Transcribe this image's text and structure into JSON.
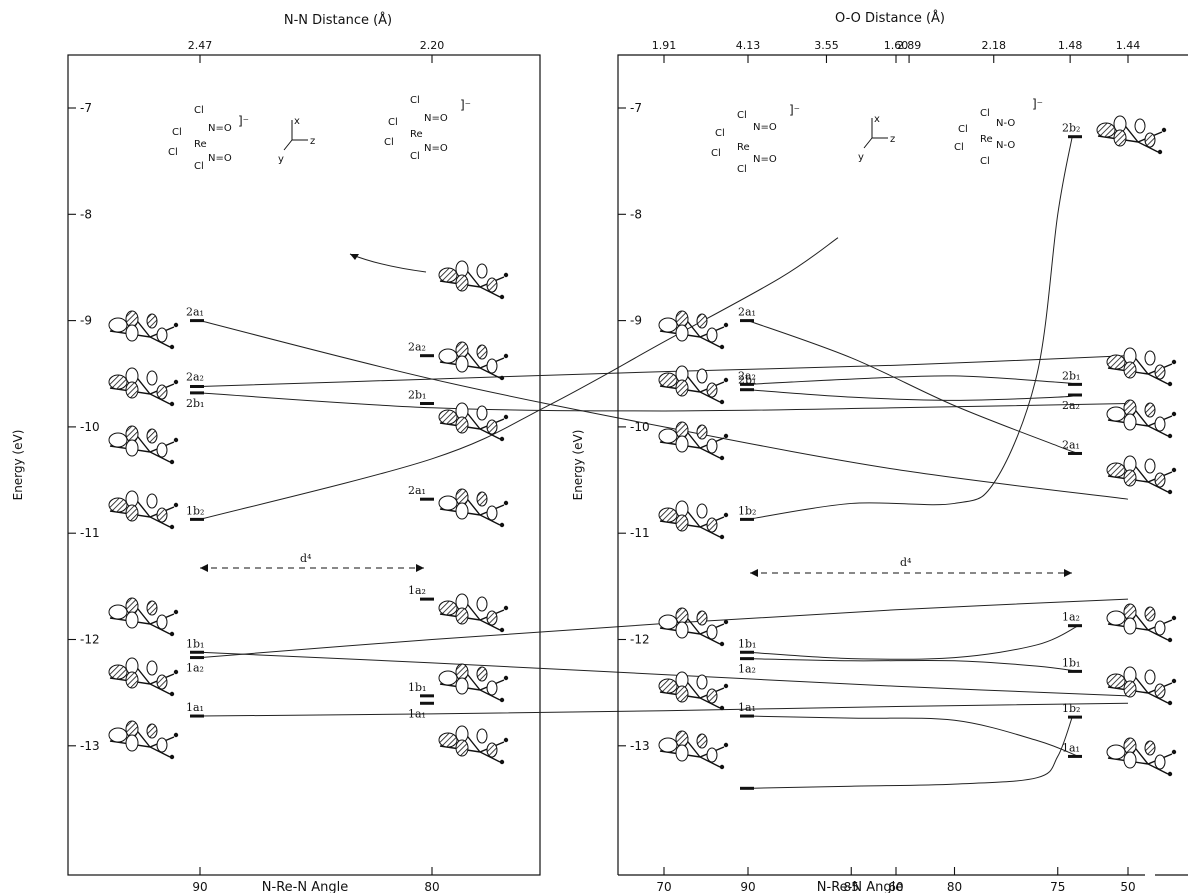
{
  "chart_data": [
    {
      "type": "line",
      "panel": "left",
      "title": "N-N Distance (Å)",
      "xlabel": "N-Re-N Angle",
      "ylabel": "Energy (eV)",
      "ylim": [
        -14.5,
        -6.5
      ],
      "yticks": [
        -7,
        -8,
        -9,
        -10,
        -11,
        -12,
        -13
      ],
      "ytick_labels": [
        "-7",
        "-8",
        "-9",
        "-10",
        "-11",
        "-12",
        "-13"
      ],
      "xlim": [
        100,
        40
      ],
      "xticks": [
        90,
        80,
        70,
        60,
        50
      ],
      "xtick_labels": [
        "90",
        "80",
        "70",
        "60",
        "50"
      ],
      "top_ticks": [
        90,
        80,
        70,
        60,
        50
      ],
      "top_tick_labels": [
        "2.47",
        "2.20",
        "1.91",
        "1.60",
        "1.44"
      ],
      "d4_label": "d⁴",
      "levels_left": [
        {
          "label": "2a₁",
          "energy": -9.0
        },
        {
          "label": "2a₂",
          "energy": -9.62
        },
        {
          "label": "2b₁",
          "energy": -9.68
        },
        {
          "label": "1b₂",
          "energy": -10.87
        },
        {
          "label": "1b₁",
          "energy": -12.12
        },
        {
          "label": "1a₂",
          "energy": -12.17
        },
        {
          "label": "1a₁",
          "energy": -12.72
        }
      ],
      "levels_right": [
        {
          "label": "2a₂",
          "energy": -9.33
        },
        {
          "label": "2b₁",
          "energy": -9.78
        },
        {
          "label": "2a₁",
          "energy": -10.68
        },
        {
          "label": "1a₂",
          "energy": -11.62
        },
        {
          "label": "1b₁",
          "energy": -12.53
        },
        {
          "label": "1a₁",
          "energy": -12.6
        }
      ],
      "correlations": [
        {
          "from": "2a₁",
          "to": "2a₁",
          "x": [
            90,
            80,
            70,
            60,
            50
          ],
          "y": [
            -9.0,
            -9.55,
            -10.0,
            -10.4,
            -10.68
          ]
        },
        {
          "from": "2a₂",
          "to": "2a₂",
          "x": [
            90,
            80,
            70,
            60,
            50
          ],
          "y": [
            -9.62,
            -9.55,
            -9.48,
            -9.42,
            -9.33
          ]
        },
        {
          "from": "2b₁",
          "to": "2b₁",
          "x": [
            90,
            80,
            70,
            60,
            50
          ],
          "y": [
            -9.68,
            -9.82,
            -9.85,
            -9.82,
            -9.78
          ]
        },
        {
          "from": "1b₂",
          "to": "off-scale",
          "x": [
            90,
            80,
            75,
            70,
            65,
            62.5
          ],
          "y": [
            -10.87,
            -10.3,
            -9.8,
            -9.2,
            -8.6,
            -8.22
          ]
        },
        {
          "from": "1b₁",
          "to": "1b₁",
          "x": [
            90,
            80,
            70,
            60,
            50
          ],
          "y": [
            -12.12,
            -12.22,
            -12.33,
            -12.44,
            -12.53
          ]
        },
        {
          "from": "1a₂",
          "to": "1a₂",
          "x": [
            90,
            80,
            70,
            60,
            50
          ],
          "y": [
            -12.17,
            -12.0,
            -11.85,
            -11.72,
            -11.62
          ]
        },
        {
          "from": "1a₁",
          "to": "1a₁",
          "x": [
            90,
            80,
            70,
            60,
            50
          ],
          "y": [
            -12.72,
            -12.7,
            -12.67,
            -12.63,
            -12.6
          ]
        }
      ]
    },
    {
      "type": "line",
      "panel": "right",
      "title": "O-O Distance (Å)",
      "xlabel": "N-Re-N Angle",
      "ylabel": "Energy (eV)",
      "ylim": [
        -14.5,
        -6.5
      ],
      "yticks": [
        -7,
        -8,
        -9,
        -10,
        -11,
        -12,
        -13
      ],
      "ytick_labels": [
        "-7",
        "-8",
        "-9",
        "-10",
        "-11",
        "-12",
        "-13"
      ],
      "xlim": [
        93.7,
        68.5
      ],
      "xticks": [
        90,
        85,
        80,
        75
      ],
      "xtick_labels": [
        "90",
        "85",
        "80",
        "75"
      ],
      "top_ticks": [
        90,
        86.2,
        82.2,
        78.1,
        74.4
      ],
      "top_tick_labels": [
        "4.13",
        "3.55",
        "2.89",
        "2.18",
        "1.48"
      ],
      "d4_label": "d⁴",
      "levels_left": [
        {
          "label": "2a₁",
          "energy": -9.0
        },
        {
          "label": "2a₂",
          "energy": -9.6
        },
        {
          "label": "2b₁",
          "energy": -9.65
        },
        {
          "label": "1b₂",
          "energy": -10.87
        },
        {
          "label": "1b₁",
          "energy": -12.12
        },
        {
          "label": "1a₂",
          "energy": -12.18
        },
        {
          "label": "1a₁",
          "energy": -12.72
        },
        {
          "label": "",
          "energy": -13.4
        }
      ],
      "levels_right": [
        {
          "label": "2b₂",
          "energy": -7.27
        },
        {
          "label": "2b₁",
          "energy": -9.6
        },
        {
          "label": "2a₂",
          "energy": -9.7
        },
        {
          "label": "2a₁",
          "energy": -10.25
        },
        {
          "label": "1a₂",
          "energy": -11.87
        },
        {
          "label": "1b₁",
          "energy": -12.3
        },
        {
          "label": "1b₂",
          "energy": -12.73
        },
        {
          "label": "1a₁",
          "energy": -13.1
        }
      ],
      "correlations": [
        {
          "from": "2a₁",
          "to": "2a₁",
          "x": [
            90,
            85,
            80,
            75,
            74
          ],
          "y": [
            -9.0,
            -9.35,
            -9.8,
            -10.18,
            -10.25
          ]
        },
        {
          "from": "2a₂",
          "to": "2b₁",
          "x": [
            90,
            85,
            80,
            75,
            74
          ],
          "y": [
            -9.6,
            -9.55,
            -9.52,
            -9.58,
            -9.6
          ]
        },
        {
          "from": "2b₁",
          "to": "2a₂",
          "x": [
            90,
            85,
            80,
            75,
            74
          ],
          "y": [
            -9.65,
            -9.72,
            -9.75,
            -9.72,
            -9.7
          ]
        },
        {
          "from": "1b₂",
          "to": "2b₂",
          "x": [
            90,
            85,
            80,
            78,
            76,
            75,
            74.3
          ],
          "y": [
            -10.87,
            -10.72,
            -10.72,
            -10.5,
            -9.5,
            -8.0,
            -7.27
          ]
        },
        {
          "from": "1b₁",
          "to": "1a₂",
          "x": [
            90,
            85,
            80,
            76,
            74
          ],
          "y": [
            -12.12,
            -12.18,
            -12.17,
            -12.05,
            -11.87
          ]
        },
        {
          "from": "1a₂",
          "to": "1b₁",
          "x": [
            90,
            85,
            80,
            76,
            74
          ],
          "y": [
            -12.18,
            -12.2,
            -12.2,
            -12.25,
            -12.3
          ]
        },
        {
          "from": "1a₁",
          "to": "1a₁",
          "x": [
            90,
            85,
            80,
            76,
            74
          ],
          "y": [
            -12.72,
            -12.74,
            -12.76,
            -12.95,
            -13.1
          ]
        },
        {
          "from": "",
          "to": "1b₂",
          "x": [
            90,
            85,
            80,
            76,
            75,
            74.3
          ],
          "y": [
            -13.4,
            -13.38,
            -13.36,
            -13.3,
            -13.1,
            -12.73
          ]
        }
      ]
    }
  ],
  "molecules": {
    "left_start": {
      "top": "Cl",
      "left1": "Cl",
      "left2": "Cl",
      "center": "Re",
      "bottom": "Cl",
      "no1": "N=O",
      "no2": "N=O",
      "charge": "]⁻"
    },
    "left_end": {
      "top": "Cl",
      "left1": "Cl",
      "left2": "Cl",
      "center": "Re",
      "bottom": "Cl",
      "no1": "N=O",
      "no2": "N=O",
      "charge": "]⁻"
    },
    "right_start": {
      "top": "Cl",
      "left1": "Cl",
      "left2": "Cl",
      "center": "Re",
      "bottom": "Cl",
      "no1": "N=O",
      "no2": "N=O",
      "charge": "]⁻"
    },
    "right_end": {
      "top": "Cl",
      "left1": "Cl",
      "left2": "Cl",
      "center": "Re",
      "bottom": "Cl",
      "no1": "N-O",
      "no2": "N-O",
      "charge": "]⁻"
    },
    "axes": {
      "x": "x",
      "y": "y",
      "z": "z"
    }
  },
  "colors": {
    "ink": "#111111",
    "background": "#ffffff"
  }
}
